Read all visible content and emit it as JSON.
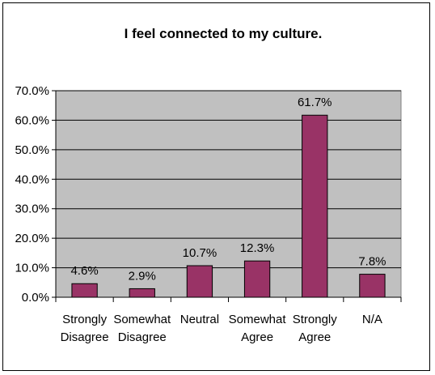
{
  "chart_data": {
    "type": "bar",
    "title": "I feel connected to my culture.",
    "categories": [
      [
        "Strongly",
        "Disagree"
      ],
      [
        "Somewhat",
        "Disagree"
      ],
      [
        "Neutral"
      ],
      [
        "Somewhat",
        "Agree"
      ],
      [
        "Strongly",
        "Agree"
      ],
      [
        "N/A"
      ]
    ],
    "values": [
      4.6,
      2.9,
      10.7,
      12.3,
      61.7,
      7.8
    ],
    "value_labels": [
      "4.6%",
      "2.9%",
      "10.7%",
      "12.3%",
      "61.7%",
      "7.8%"
    ],
    "yticks": [
      "0.0%",
      "10.0%",
      "20.0%",
      "30.0%",
      "40.0%",
      "50.0%",
      "60.0%",
      "70.0%"
    ],
    "ylim": [
      0,
      70
    ],
    "xlabel": "",
    "ylabel": "",
    "grid": true,
    "legend": false,
    "colors": {
      "bar_fill": "#993366",
      "bar_stroke": "#000000",
      "plot_bg": "#c0c0c0",
      "gridline": "#000000"
    }
  }
}
